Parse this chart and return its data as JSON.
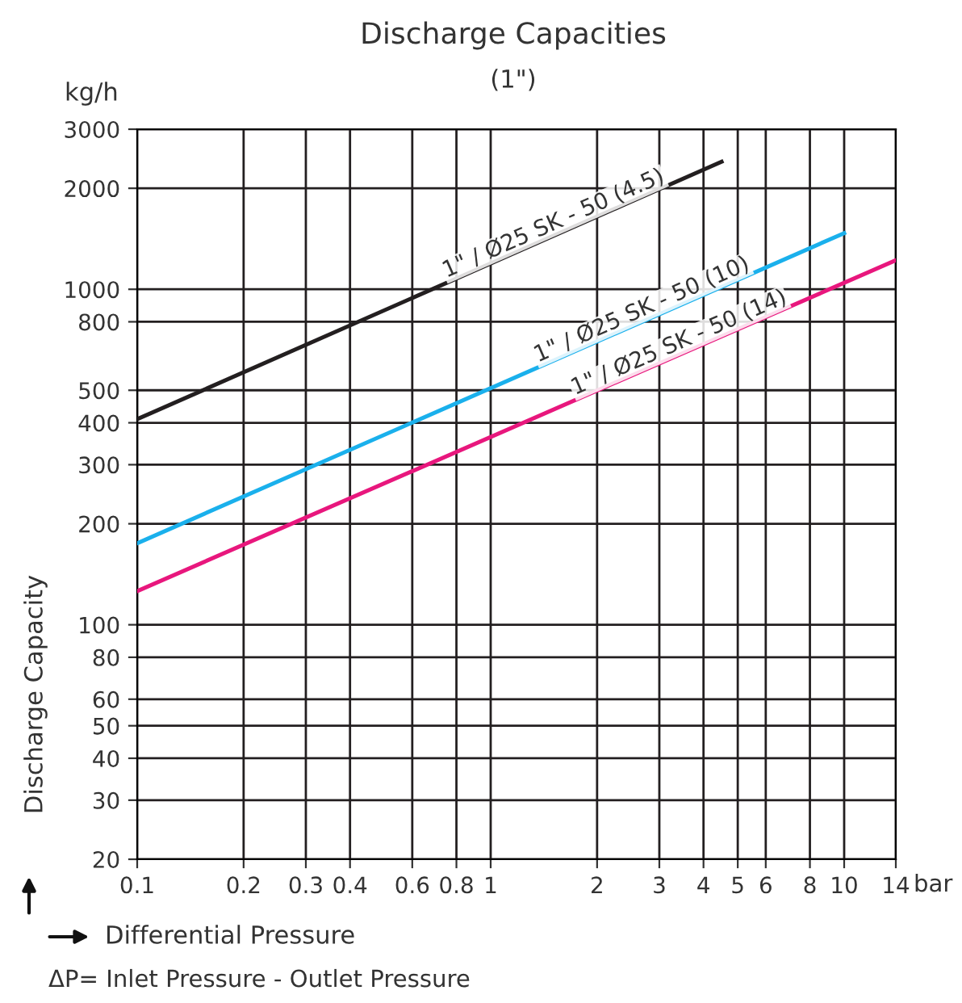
{
  "chart_data": {
    "type": "line",
    "title": "Discharge Capacities",
    "subtitle": "(1\")",
    "xlabel": "Differential Pressure",
    "ylabel": "Discharge Capacity",
    "annotations": [
      "kg/h",
      "bar",
      "ΔP= Inlet Pressure - Outlet Pressure"
    ],
    "log": "xy",
    "grid": true,
    "legend": false,
    "marker": "none",
    "line_style": "solid",
    "xlim": [
      0.1,
      14
    ],
    "ylim": [
      20,
      3000
    ],
    "xticks": [
      0.1,
      0.2,
      0.3,
      0.4,
      0.6,
      0.8,
      1,
      2,
      3,
      4,
      5,
      6,
      8,
      10,
      14
    ],
    "yticks": [
      20,
      30,
      40,
      50,
      60,
      80,
      100,
      200,
      300,
      400,
      500,
      800,
      1000,
      2000,
      3000
    ],
    "series": [
      {
        "name": "1\" / Ø25 SK - 50 (4.5)",
        "color": "#231f20",
        "x": [
          0.1,
          4.5
        ],
        "values": [
          410,
          2400
        ]
      },
      {
        "name": "1\" / Ø25 SK - 50 (10)",
        "color": "#1ab0ec",
        "x": [
          0.1,
          10
        ],
        "values": [
          175,
          1470
        ]
      },
      {
        "name": "1\" / Ø25 SK - 50 (14)",
        "color": "#e8177d",
        "x": [
          0.1,
          14
        ],
        "values": [
          126,
          1220
        ]
      }
    ]
  }
}
